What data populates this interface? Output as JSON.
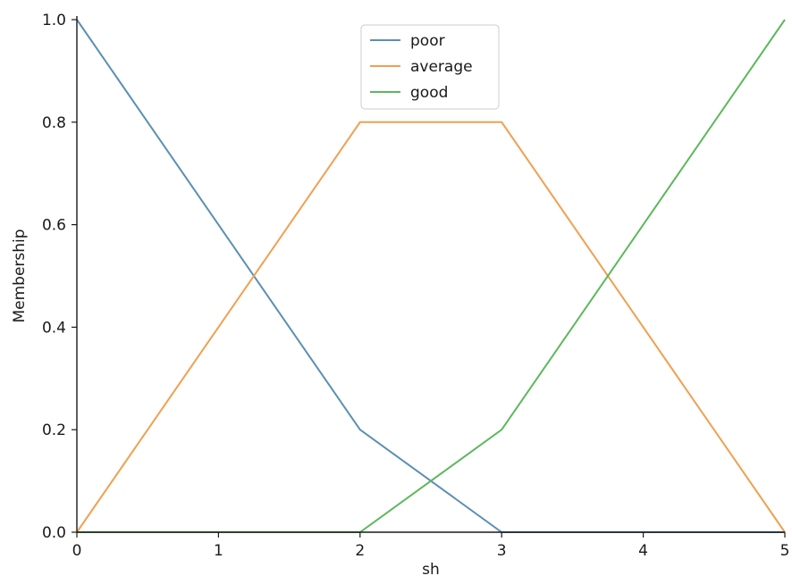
{
  "chart_data": {
    "type": "line",
    "title": "",
    "xlabel": "sh",
    "ylabel": "Membership",
    "xlim": [
      0,
      5
    ],
    "ylim": [
      0,
      1
    ],
    "xticks": [
      "0",
      "1",
      "2",
      "3",
      "4",
      "5"
    ],
    "yticks": [
      "0.0",
      "0.2",
      "0.4",
      "0.6",
      "0.8",
      "1.0"
    ],
    "grid": false,
    "legend_position": "top-center",
    "series": [
      {
        "name": "poor",
        "color": "#5b8fb5",
        "x": [
          0,
          2,
          3,
          5
        ],
        "y": [
          1.0,
          0.2,
          0.0,
          0.0
        ]
      },
      {
        "name": "average",
        "color": "#f0a050",
        "x": [
          0,
          2,
          3,
          5
        ],
        "y": [
          0.0,
          0.8,
          0.8,
          0.0
        ]
      },
      {
        "name": "good",
        "color": "#5cb85c",
        "x": [
          0,
          2,
          3,
          5
        ],
        "y": [
          0.0,
          0.0,
          0.2,
          1.0
        ]
      }
    ]
  }
}
